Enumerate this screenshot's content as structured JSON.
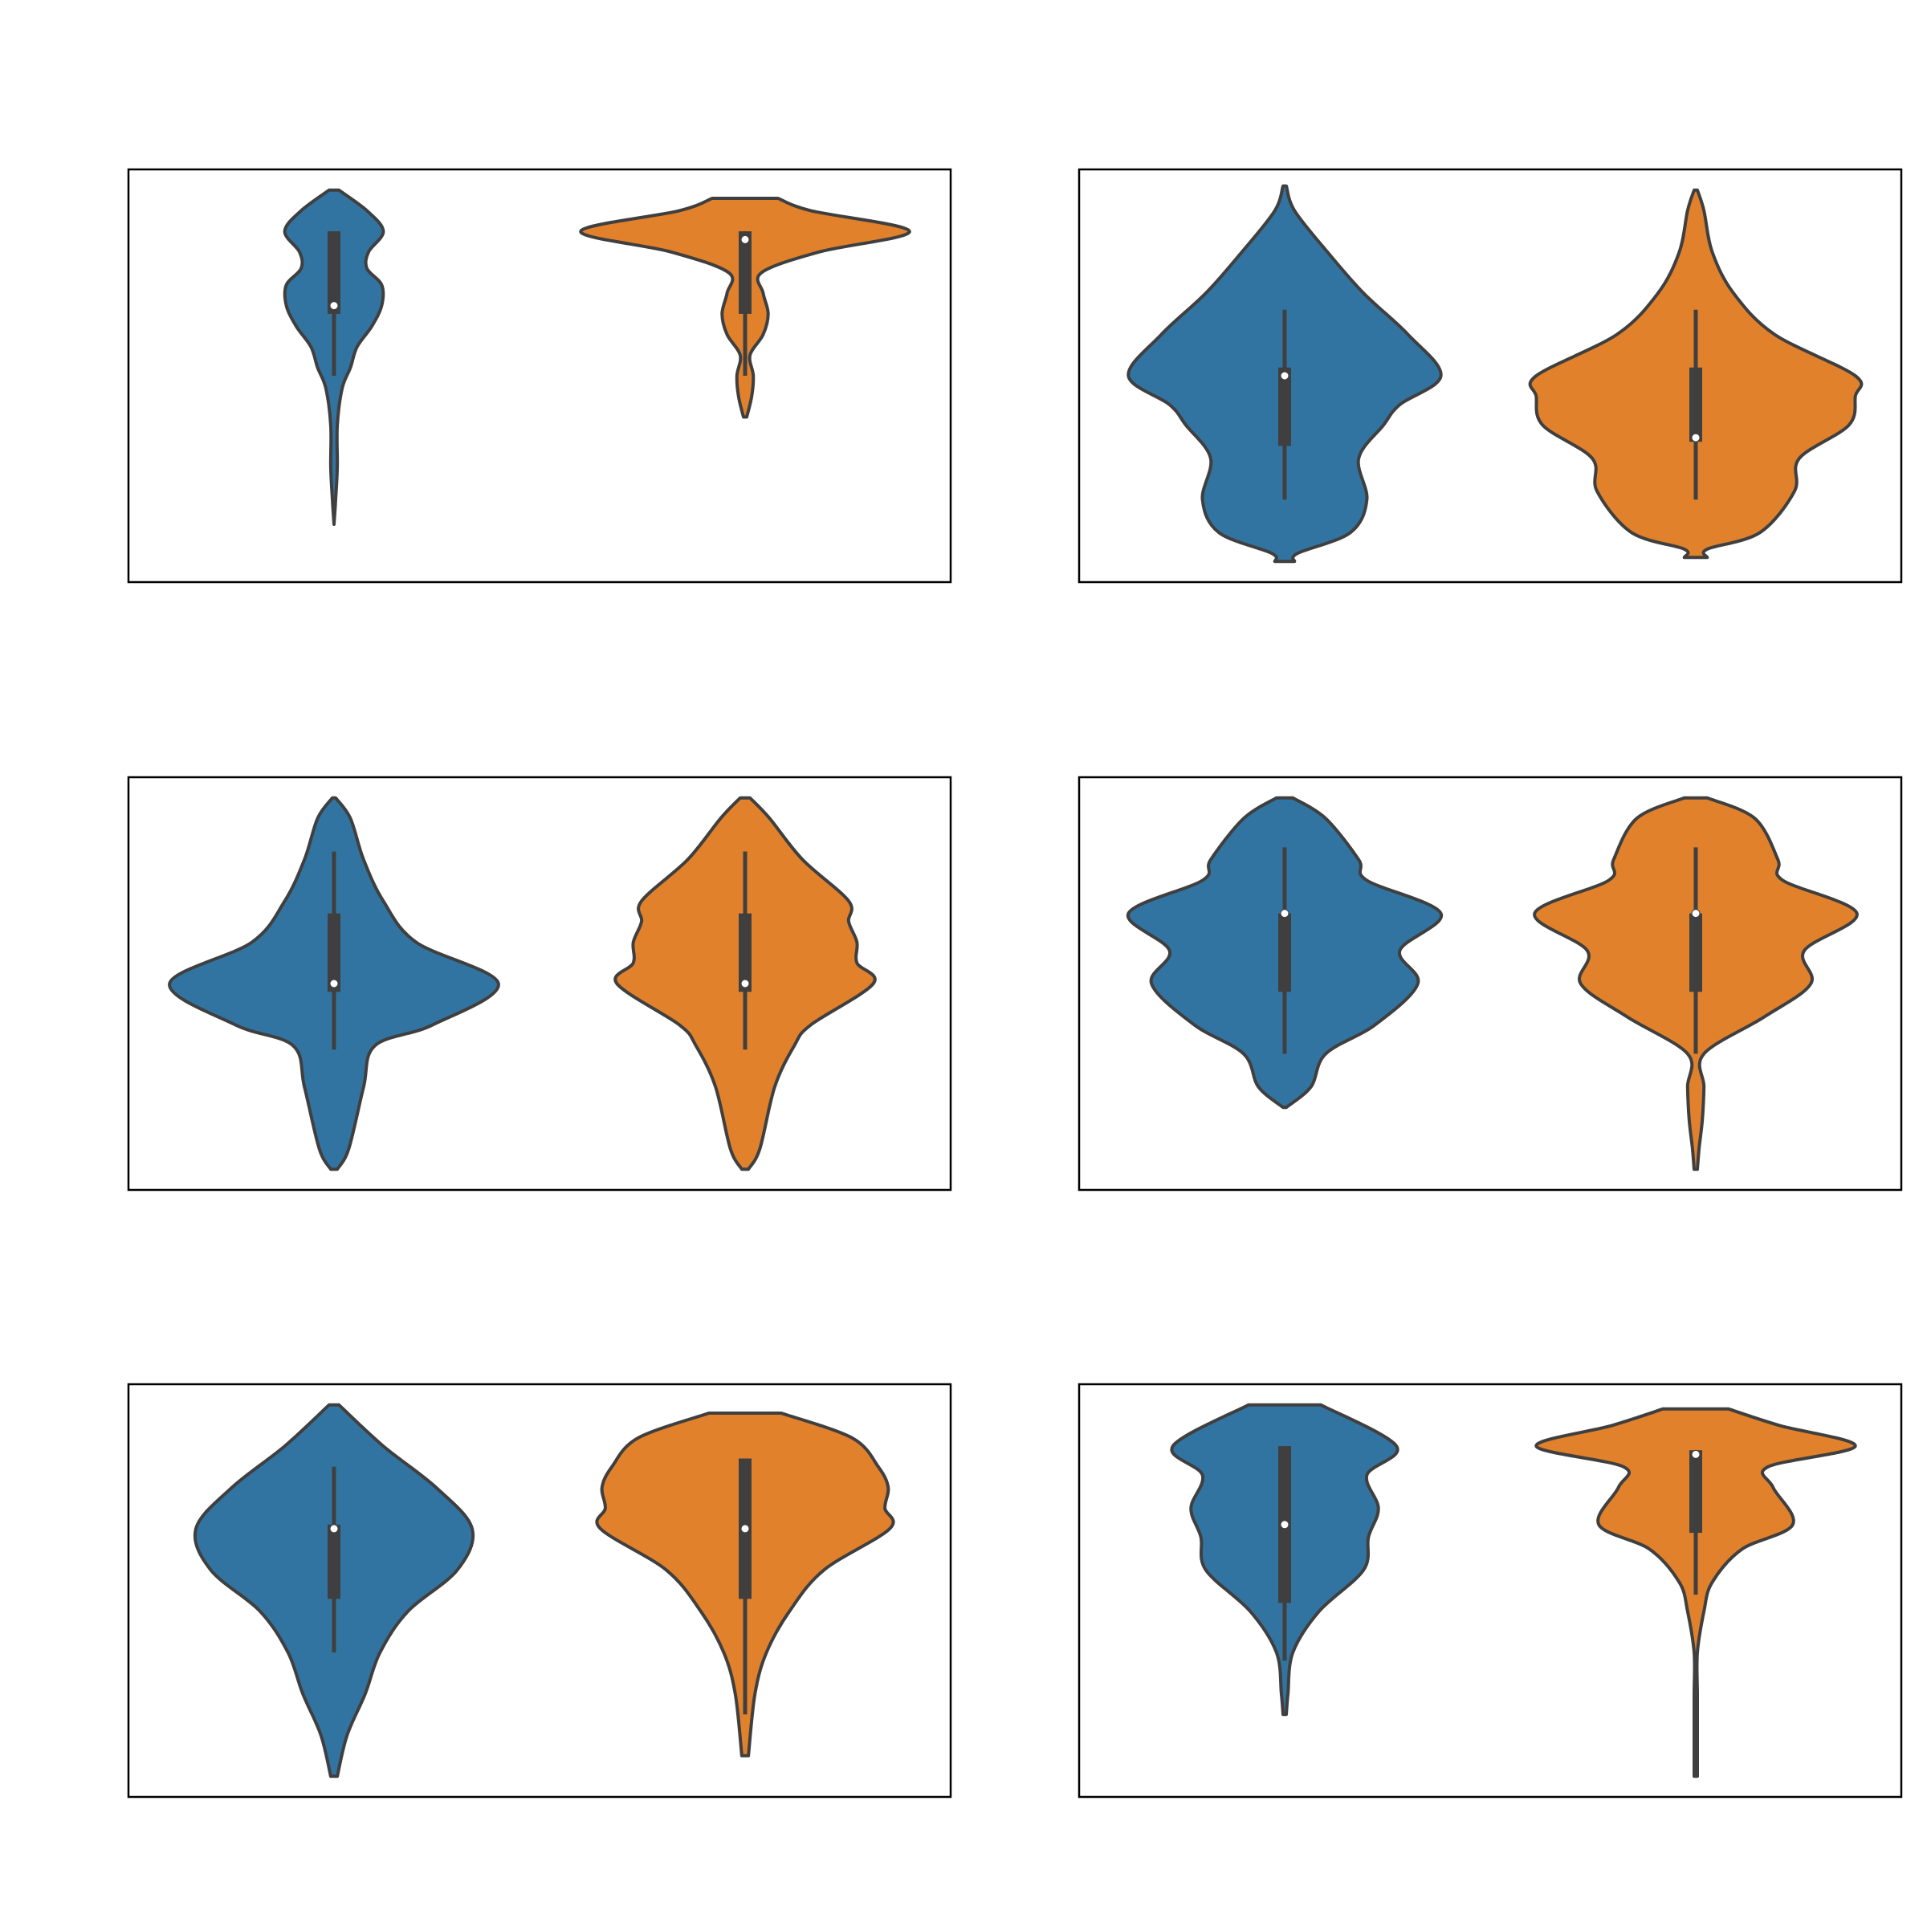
{
  "figure": {
    "colors": {
      "series_a": "#3274a1",
      "series_b": "#e1812c",
      "outline": "#3f3f3f",
      "frame": "#000000",
      "median": "#ffffff"
    }
  },
  "chart_data": [
    {
      "type": "violin",
      "grid": false,
      "ylim": [
        0,
        1
      ],
      "violins": [
        {
          "color": "series_a",
          "profile": [
            [
              0.95,
              0.03
            ],
            [
              0.9,
              0.2
            ],
            [
              0.85,
              0.3
            ],
            [
              0.8,
              0.21
            ],
            [
              0.76,
              0.2
            ],
            [
              0.72,
              0.29
            ],
            [
              0.67,
              0.29
            ],
            [
              0.62,
              0.23
            ],
            [
              0.57,
              0.14
            ],
            [
              0.52,
              0.1
            ],
            [
              0.47,
              0.05
            ],
            [
              0.38,
              0.02
            ],
            [
              0.28,
              0.02
            ],
            [
              0.2,
              0.01
            ],
            [
              0.14,
              0.0
            ]
          ],
          "box": {
            "q1": 0.65,
            "q3": 0.85,
            "median": 0.67,
            "whisker_low": 0.5,
            "whisker_high": 0.85
          }
        },
        {
          "color": "series_b",
          "profile": [
            [
              0.93,
              0.2
            ],
            [
              0.9,
              0.4
            ],
            [
              0.85,
              1.0
            ],
            [
              0.8,
              0.45
            ],
            [
              0.75,
              0.1
            ],
            [
              0.7,
              0.11
            ],
            [
              0.65,
              0.14
            ],
            [
              0.6,
              0.11
            ],
            [
              0.55,
              0.03
            ],
            [
              0.5,
              0.05
            ],
            [
              0.45,
              0.04
            ],
            [
              0.4,
              0.01
            ]
          ],
          "box": {
            "q1": 0.65,
            "q3": 0.85,
            "median": 0.83,
            "whisker_low": 0.5,
            "whisker_high": 0.85
          }
        }
      ]
    },
    {
      "type": "violin",
      "grid": false,
      "ylim": [
        0,
        1
      ],
      "violins": [
        {
          "color": "series_a",
          "profile": [
            [
              0.96,
              0.01
            ],
            [
              0.9,
              0.06
            ],
            [
              0.8,
              0.26
            ],
            [
              0.7,
              0.48
            ],
            [
              0.6,
              0.75
            ],
            [
              0.5,
              0.95
            ],
            [
              0.43,
              0.7
            ],
            [
              0.38,
              0.6
            ],
            [
              0.3,
              0.45
            ],
            [
              0.2,
              0.5
            ],
            [
              0.12,
              0.4
            ],
            [
              0.07,
              0.08
            ],
            [
              0.05,
              0.06
            ]
          ],
          "box": {
            "q1": 0.33,
            "q3": 0.52,
            "median": 0.5,
            "whisker_low": 0.2,
            "whisker_high": 0.66
          }
        },
        {
          "color": "series_b",
          "profile": [
            [
              0.95,
              0.01
            ],
            [
              0.9,
              0.05
            ],
            [
              0.8,
              0.1
            ],
            [
              0.7,
              0.23
            ],
            [
              0.6,
              0.48
            ],
            [
              0.5,
              0.97
            ],
            [
              0.45,
              0.97
            ],
            [
              0.38,
              0.93
            ],
            [
              0.3,
              0.63
            ],
            [
              0.22,
              0.6
            ],
            [
              0.12,
              0.39
            ],
            [
              0.08,
              0.07
            ],
            [
              0.06,
              0.07
            ]
          ],
          "box": {
            "q1": 0.34,
            "q3": 0.52,
            "median": 0.35,
            "whisker_low": 0.2,
            "whisker_high": 0.66
          }
        }
      ]
    },
    {
      "type": "violin",
      "grid": false,
      "ylim": [
        0,
        1
      ],
      "violins": [
        {
          "color": "series_a",
          "profile": [
            [
              0.95,
              0.01
            ],
            [
              0.9,
              0.1
            ],
            [
              0.8,
              0.18
            ],
            [
              0.7,
              0.3
            ],
            [
              0.6,
              0.5
            ],
            [
              0.5,
              1.0
            ],
            [
              0.4,
              0.6
            ],
            [
              0.35,
              0.25
            ],
            [
              0.25,
              0.18
            ],
            [
              0.1,
              0.09
            ],
            [
              0.05,
              0.02
            ]
          ],
          "box": {
            "q1": 0.48,
            "q3": 0.67,
            "median": 0.5,
            "whisker_low": 0.34,
            "whisker_high": 0.82
          }
        },
        {
          "color": "series_b",
          "profile": [
            [
              0.95,
              0.03
            ],
            [
              0.9,
              0.15
            ],
            [
              0.8,
              0.35
            ],
            [
              0.7,
              0.63
            ],
            [
              0.65,
              0.63
            ],
            [
              0.6,
              0.68
            ],
            [
              0.55,
              0.68
            ],
            [
              0.5,
              0.78
            ],
            [
              0.4,
              0.4
            ],
            [
              0.35,
              0.3
            ],
            [
              0.25,
              0.18
            ],
            [
              0.1,
              0.09
            ],
            [
              0.05,
              0.02
            ]
          ],
          "box": {
            "q1": 0.48,
            "q3": 0.67,
            "median": 0.5,
            "whisker_low": 0.34,
            "whisker_high": 0.82
          }
        }
      ]
    },
    {
      "type": "violin",
      "grid": false,
      "ylim": [
        0,
        1
      ],
      "violins": [
        {
          "color": "series_a",
          "profile": [
            [
              0.95,
              0.05
            ],
            [
              0.9,
              0.25
            ],
            [
              0.8,
              0.45
            ],
            [
              0.75,
              0.5
            ],
            [
              0.67,
              0.95
            ],
            [
              0.58,
              0.7
            ],
            [
              0.5,
              0.81
            ],
            [
              0.4,
              0.55
            ],
            [
              0.33,
              0.25
            ],
            [
              0.25,
              0.16
            ],
            [
              0.2,
              0.01
            ]
          ],
          "box": {
            "q1": 0.48,
            "q3": 0.67,
            "median": 0.67,
            "whisker_low": 0.33,
            "whisker_high": 0.83
          }
        },
        {
          "color": "series_b",
          "profile": [
            [
              0.95,
              0.07
            ],
            [
              0.9,
              0.36
            ],
            [
              0.8,
              0.5
            ],
            [
              0.75,
              0.53
            ],
            [
              0.67,
              0.98
            ],
            [
              0.58,
              0.66
            ],
            [
              0.5,
              0.7
            ],
            [
              0.42,
              0.42
            ],
            [
              0.33,
              0.05
            ],
            [
              0.25,
              0.05
            ],
            [
              0.17,
              0.04
            ],
            [
              0.1,
              0.02
            ],
            [
              0.05,
              0.01
            ]
          ],
          "box": {
            "q1": 0.48,
            "q3": 0.67,
            "median": 0.67,
            "whisker_low": 0.33,
            "whisker_high": 0.83
          }
        }
      ]
    },
    {
      "type": "violin",
      "grid": false,
      "ylim": [
        0,
        1
      ],
      "violins": [
        {
          "color": "series_a",
          "profile": [
            [
              0.95,
              0.03
            ],
            [
              0.85,
              0.3
            ],
            [
              0.75,
              0.62
            ],
            [
              0.65,
              0.84
            ],
            [
              0.55,
              0.75
            ],
            [
              0.45,
              0.45
            ],
            [
              0.35,
              0.28
            ],
            [
              0.25,
              0.19
            ],
            [
              0.15,
              0.08
            ],
            [
              0.05,
              0.02
            ]
          ],
          "box": {
            "q1": 0.48,
            "q3": 0.66,
            "median": 0.65,
            "whisker_low": 0.35,
            "whisker_high": 0.8
          }
        },
        {
          "color": "series_b",
          "profile": [
            [
              0.93,
              0.22
            ],
            [
              0.87,
              0.65
            ],
            [
              0.8,
              0.81
            ],
            [
              0.75,
              0.87
            ],
            [
              0.7,
              0.85
            ],
            [
              0.65,
              0.88
            ],
            [
              0.55,
              0.48
            ],
            [
              0.45,
              0.27
            ],
            [
              0.35,
              0.13
            ],
            [
              0.25,
              0.06
            ],
            [
              0.1,
              0.02
            ]
          ],
          "box": {
            "q1": 0.48,
            "q3": 0.82,
            "median": 0.65,
            "whisker_low": 0.2,
            "whisker_high": 0.82
          }
        }
      ]
    },
    {
      "type": "violin",
      "grid": false,
      "ylim": [
        0,
        1
      ],
      "violins": [
        {
          "color": "series_a",
          "profile": [
            [
              0.95,
              0.22
            ],
            [
              0.85,
              0.68
            ],
            [
              0.78,
              0.5
            ],
            [
              0.7,
              0.57
            ],
            [
              0.63,
              0.51
            ],
            [
              0.55,
              0.48
            ],
            [
              0.45,
              0.21
            ],
            [
              0.35,
              0.05
            ],
            [
              0.25,
              0.02
            ],
            [
              0.2,
              0.01
            ]
          ],
          "box": {
            "q1": 0.47,
            "q3": 0.85,
            "median": 0.66,
            "whisker_low": 0.33,
            "whisker_high": 0.85
          }
        },
        {
          "color": "series_b",
          "profile": [
            [
              0.94,
              0.2
            ],
            [
              0.9,
              0.51
            ],
            [
              0.85,
              0.97
            ],
            [
              0.8,
              0.44
            ],
            [
              0.75,
              0.47
            ],
            [
              0.66,
              0.59
            ],
            [
              0.6,
              0.28
            ],
            [
              0.52,
              0.1
            ],
            [
              0.45,
              0.05
            ],
            [
              0.35,
              0.01
            ],
            [
              0.25,
              0.01
            ],
            [
              0.18,
              0.01
            ],
            [
              0.05,
              0.01
            ]
          ],
          "box": {
            "q1": 0.64,
            "q3": 0.84,
            "median": 0.83,
            "whisker_low": 0.49,
            "whisker_high": 0.84
          }
        }
      ]
    }
  ]
}
